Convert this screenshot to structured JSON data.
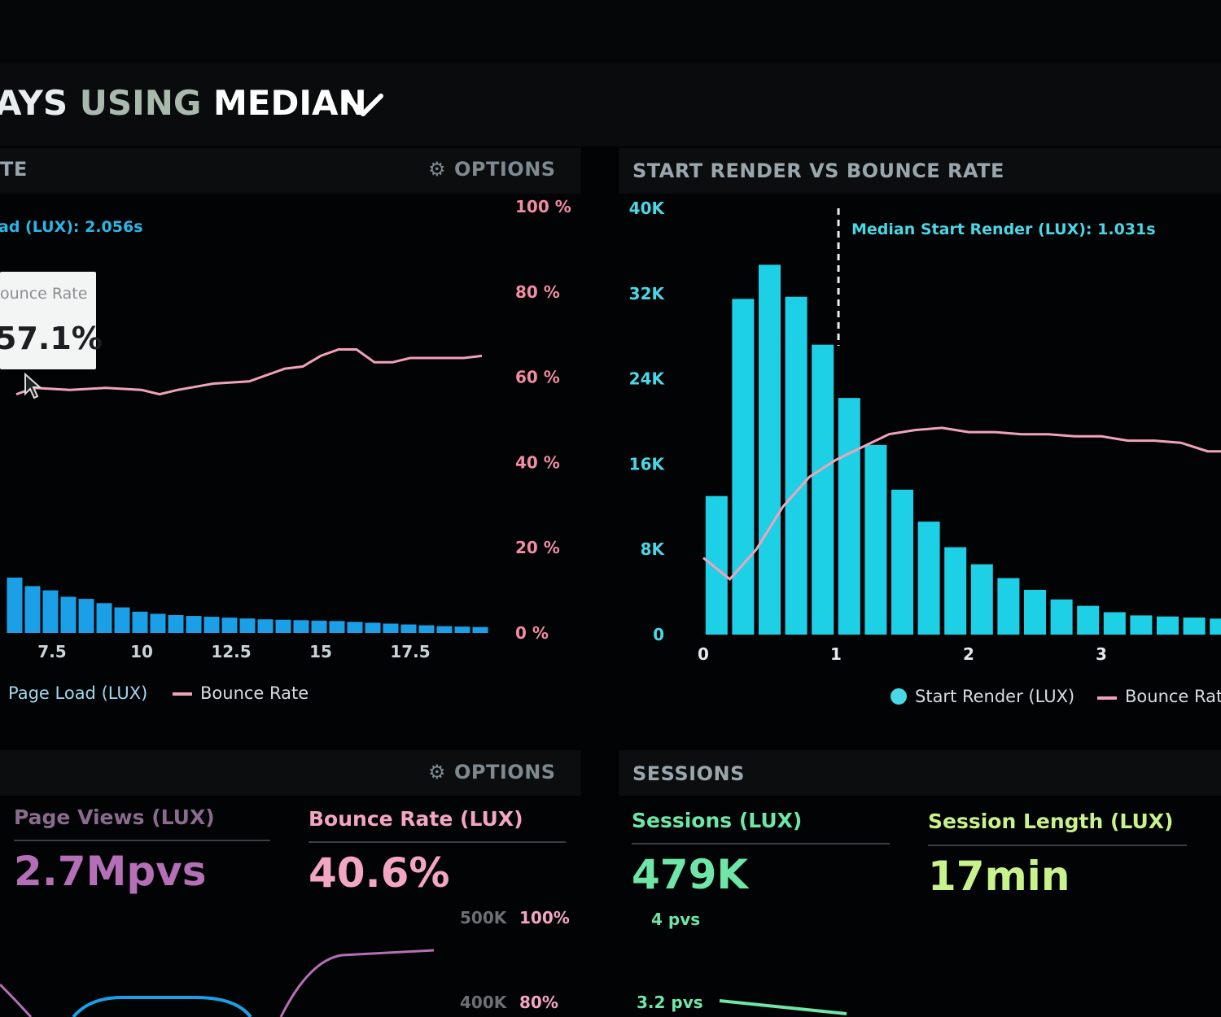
{
  "header": {
    "title_part1": "AYS",
    "title_part2": "USING",
    "title_part3": "MEDIAN",
    "dropdown_icon": "chevron-down-icon"
  },
  "left_panel": {
    "title": "TE",
    "options_label": "OPTIONS",
    "options_icon": "gear-icon",
    "median_label": "ad (LUX): 2.056s",
    "tooltip": {
      "label": "ounce Rate",
      "value": "57.1%"
    },
    "legend": {
      "page_load": "Page Load (LUX)",
      "bounce_rate": "Bounce Rate"
    }
  },
  "right_panel": {
    "title": "START RENDER VS BOUNCE RATE",
    "median_label": "Median Start Render (LUX): 1.031s",
    "legend": {
      "start_render": "Start Render (LUX)",
      "bounce_rate": "Bounce Rate"
    }
  },
  "bottom_left": {
    "options_label": "OPTIONS",
    "options_icon": "gear-icon",
    "page_views": {
      "label": "Page Views (LUX)",
      "value": "2.7Mpvs",
      "color": "#b46fb7"
    },
    "bounce_rate": {
      "label": "Bounce Rate (LUX)",
      "value": "40.6%",
      "color": "#f3a6c2"
    },
    "axis": {
      "l1": "500K",
      "r1": "100%",
      "l2": "400K",
      "r2": "80%"
    }
  },
  "bottom_right": {
    "title": "SESSIONS",
    "sessions": {
      "label": "Sessions (LUX)",
      "value": "479K",
      "sub1": "4 pvs",
      "sub2": "3.2 pvs",
      "color": "#6fe6a8"
    },
    "session_length": {
      "label": "Session Length (LUX)",
      "value": "17min",
      "color": "#c9f28c"
    }
  },
  "chart_data": [
    {
      "type": "bar",
      "series": [
        {
          "name": "Page Load (LUX)",
          "color": "#1b9fe6",
          "x": [
            6.5,
            7,
            7.5,
            8,
            8.5,
            9,
            9.5,
            10,
            10.5,
            11,
            11.5,
            12,
            12.5,
            13,
            13.5,
            14,
            14.5,
            15,
            15.5,
            16,
            16.5,
            17,
            17.5,
            18,
            18.5,
            19,
            19.5
          ],
          "values": [
            0.13,
            0.11,
            0.1,
            0.085,
            0.08,
            0.07,
            0.06,
            0.05,
            0.045,
            0.042,
            0.04,
            0.038,
            0.036,
            0.034,
            0.032,
            0.031,
            0.03,
            0.029,
            0.028,
            0.026,
            0.024,
            0.022,
            0.02,
            0.018,
            0.016,
            0.015,
            0.014
          ]
        },
        {
          "name": "Bounce Rate",
          "color": "#f0a3b8",
          "kind": "line",
          "x": [
            6.5,
            7,
            8,
            9,
            10,
            10.5,
            11,
            12,
            13,
            14,
            14.5,
            15,
            15.5,
            16,
            16.5,
            17,
            17.5,
            18,
            18.5,
            19,
            19.5
          ],
          "values": [
            56,
            57.5,
            57,
            57.5,
            57,
            56,
            57,
            58.5,
            59,
            62,
            62.5,
            65,
            66.5,
            66.5,
            63.5,
            63.5,
            64.5,
            64.5,
            64.5,
            64.5,
            65
          ]
        }
      ],
      "xticks": [
        "7.5",
        "10",
        "12.5",
        "15",
        "17.5"
      ],
      "yticks_right": [
        "100 %",
        "80 %",
        "60 %",
        "40 %",
        "20 %",
        "0 %"
      ],
      "ylim": [
        0,
        100
      ]
    },
    {
      "type": "bar",
      "series": [
        {
          "name": "Start Render (LUX)",
          "color": "#1ed0e6",
          "x": [
            0.1,
            0.3,
            0.5,
            0.7,
            0.9,
            1.1,
            1.3,
            1.5,
            1.7,
            1.9,
            2.1,
            2.3,
            2.5,
            2.7,
            2.9,
            3.1,
            3.3,
            3.5,
            3.7,
            3.9
          ],
          "values": [
            13000,
            31500,
            34700,
            31700,
            27200,
            22200,
            17800,
            13600,
            10600,
            8200,
            6600,
            5300,
            4200,
            3300,
            2700,
            2100,
            1800,
            1700,
            1600,
            1500
          ]
        },
        {
          "name": "Bounce Rate",
          "color": "#f0a3b8",
          "kind": "line",
          "x": [
            0,
            0.2,
            0.4,
            0.6,
            0.8,
            1.0,
            1.2,
            1.4,
            1.6,
            1.8,
            2.0,
            2.2,
            2.4,
            2.6,
            2.8,
            3.0,
            3.2,
            3.4,
            3.6,
            3.8,
            4.0
          ],
          "values": [
            18,
            13,
            20,
            30,
            37,
            41,
            44,
            47,
            48,
            48.5,
            47.5,
            47.5,
            47,
            47,
            46.5,
            46.5,
            45.5,
            45.5,
            45,
            43,
            43
          ]
        }
      ],
      "xticks": [
        "0",
        "1",
        "2",
        "3"
      ],
      "yticks_left": [
        "40K",
        "32K",
        "24K",
        "16K",
        "8K",
        "0"
      ],
      "ylim": [
        0,
        40000
      ],
      "median_x": 1.031
    }
  ]
}
